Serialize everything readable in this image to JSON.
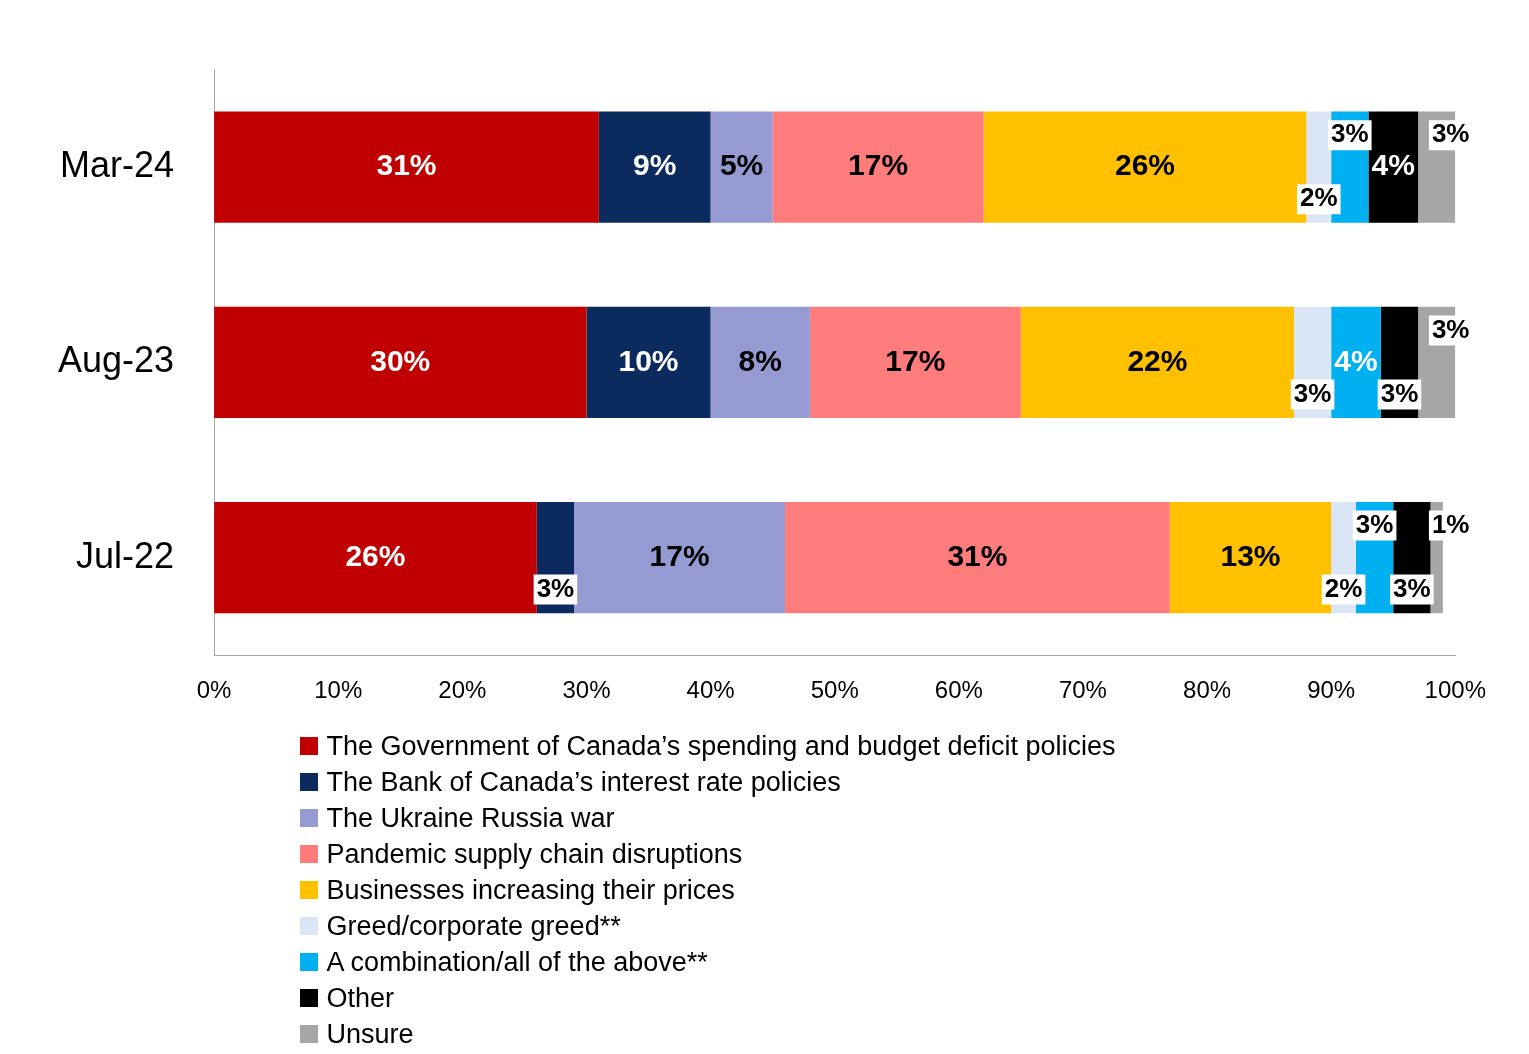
{
  "chart_data": {
    "type": "bar",
    "orientation": "horizontal",
    "stacked": true,
    "categories": [
      "Mar-24",
      "Aug-23",
      "Jul-22"
    ],
    "series": [
      {
        "name": "The Government of Canada’s spending and budget deficit policies",
        "color": "#c00000",
        "values": [
          31,
          30,
          26
        ],
        "value_labels": [
          "31%",
          "30%",
          "26%"
        ]
      },
      {
        "name": "The Bank of Canada’s interest rate policies",
        "color": "#0b2a5e",
        "values": [
          9,
          10,
          3
        ],
        "value_labels": [
          "9%",
          "10%",
          "3%"
        ]
      },
      {
        "name": "The Ukraine Russia war",
        "color": "#959bd2",
        "values": [
          5,
          8,
          17
        ],
        "value_labels": [
          "5%",
          "8%",
          "17%"
        ]
      },
      {
        "name": "Pandemic supply chain disruptions",
        "color": "#ff7c7c",
        "values": [
          17,
          17,
          31
        ],
        "value_labels": [
          "17%",
          "17%",
          "31%"
        ]
      },
      {
        "name": "Businesses increasing their prices",
        "color": "#ffc000",
        "values": [
          26,
          22,
          13
        ],
        "value_labels": [
          "26%",
          "22%",
          "13%"
        ]
      },
      {
        "name": "Greed/corporate greed**",
        "color": "#dae6f6",
        "values": [
          2,
          3,
          2
        ],
        "value_labels": [
          "2%",
          "3%",
          "2%"
        ]
      },
      {
        "name": "A combination/all of the above**",
        "color": "#00b0f0",
        "values": [
          3,
          4,
          3
        ],
        "value_labels": [
          "3%",
          "4%",
          "3%"
        ]
      },
      {
        "name": "Other",
        "color": "#000000",
        "values": [
          4,
          3,
          3
        ],
        "value_labels": [
          "4%",
          "3%",
          "3%"
        ]
      },
      {
        "name": "Unsure",
        "color": "#a6a6a6",
        "values": [
          3,
          3,
          1
        ],
        "value_labels": [
          "3%",
          "3%",
          "1%"
        ]
      }
    ],
    "xlim": [
      0,
      100
    ],
    "xticks": [
      {
        "value": 0,
        "label": "0%"
      },
      {
        "value": 10,
        "label": "10%"
      },
      {
        "value": 20,
        "label": "20%"
      },
      {
        "value": 30,
        "label": "30%"
      },
      {
        "value": 40,
        "label": "40%"
      },
      {
        "value": 50,
        "label": "50%"
      },
      {
        "value": 60,
        "label": "60%"
      },
      {
        "value": 70,
        "label": "70%"
      },
      {
        "value": 80,
        "label": "80%"
      },
      {
        "value": 90,
        "label": "90%"
      },
      {
        "value": 100,
        "label": "100%"
      }
    ],
    "grid": false,
    "legend": "bottom"
  }
}
